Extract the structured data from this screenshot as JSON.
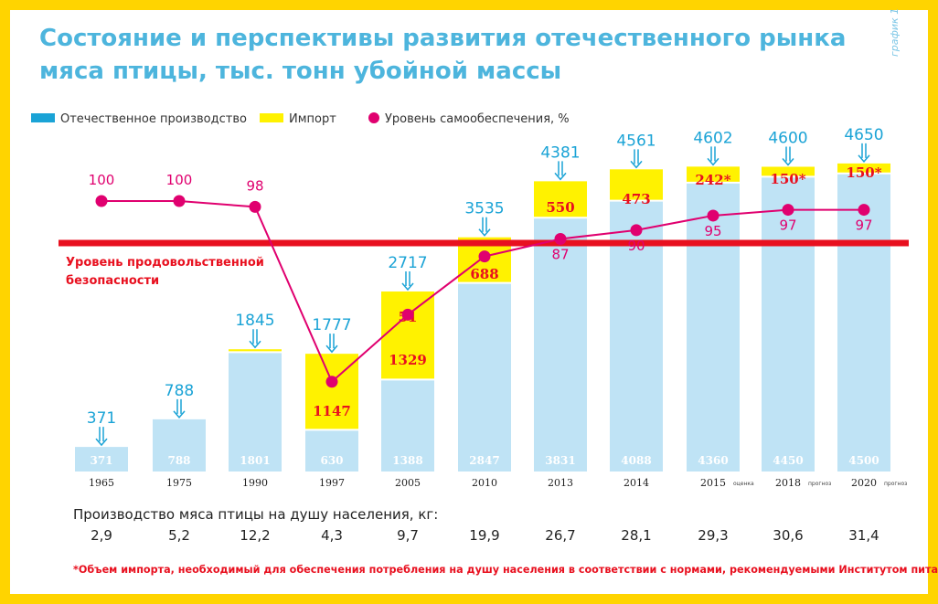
{
  "title_lines": [
    "Состояние и перспективы развития отечественного рынка",
    "мяса птицы, тыс. тонн убойной массы"
  ],
  "side_label": "график 1",
  "colors": {
    "domestic": "#bfe3f5",
    "import": "#fff200",
    "line": "#e0006f",
    "threshold": "#e8101f",
    "accent_blue": "#1aa3d6",
    "title": "#4db5dd"
  },
  "chart_data": {
    "type": "bar",
    "stacked": true,
    "unit": "тыс. тонн убойной массы",
    "legend": [
      {
        "key": "domestic",
        "label": "Отечественное производство"
      },
      {
        "key": "import",
        "label": "Импорт"
      },
      {
        "key": "self",
        "label": "Уровень самообеспечения, %"
      }
    ],
    "categories": [
      "1965",
      "1975",
      "1990",
      "1997",
      "2005",
      "2010",
      "2013",
      "2014",
      "2015",
      "2018",
      "2020"
    ],
    "category_notes": [
      "",
      "",
      "",
      "",
      "",
      "",
      "",
      "",
      "оценка",
      "прогноз",
      "прогноз"
    ],
    "domestic_labels": [
      "371",
      "788",
      "1801",
      "630",
      "1388",
      "2847",
      "3831",
      "4088",
      "4360",
      "4450",
      "4500"
    ],
    "series": [
      {
        "name": "Отечественное производство",
        "values": [
          371,
          788,
          1801,
          630,
          1388,
          2847,
          3831,
          4088,
          4360,
          4450,
          4500
        ]
      },
      {
        "name": "Импорт",
        "values": [
          0,
          0,
          44,
          1147,
          1329,
          688,
          550,
          473,
          242,
          150,
          150
        ]
      }
    ],
    "import_labels": [
      "",
      "",
      "",
      "1147",
      "1329",
      "688",
      "550",
      "473",
      "242*",
      "150*",
      "150*"
    ],
    "import_label_extra": [
      "",
      "",
      "",
      "",
      "51",
      "",
      "",
      "",
      "",
      "",
      ""
    ],
    "totals": [
      371,
      788,
      1845,
      1777,
      2717,
      3535,
      4381,
      4561,
      4602,
      4600,
      4650
    ],
    "self_sufficiency": {
      "name": "Уровень самообеспечения, %",
      "indices": [
        0,
        1,
        2,
        3,
        4,
        5,
        6,
        7,
        8,
        9,
        10
      ],
      "values": [
        100,
        100,
        98,
        38,
        61,
        81,
        87,
        90,
        95,
        97,
        97
      ],
      "labels": [
        "100",
        "100",
        "98",
        "",
        "",
        "",
        "87",
        "90",
        "95",
        "97",
        "97"
      ]
    },
    "threshold": {
      "label_lines": [
        "Уровень продовольственной",
        "безопасности"
      ]
    },
    "per_capita": {
      "title": "Производство мяса птицы на душу населения, кг:",
      "values": [
        "2,9",
        "5,2",
        "12,2",
        "4,3",
        "9,7",
        "19,9",
        "26,7",
        "28,1",
        "29,3",
        "30,6",
        "31,4"
      ]
    },
    "footnote": "*Объем импорта, необходимый для обеспечения потребления на душу населения в соответствии с нормами, рекомендуемыми Институтом питания"
  }
}
